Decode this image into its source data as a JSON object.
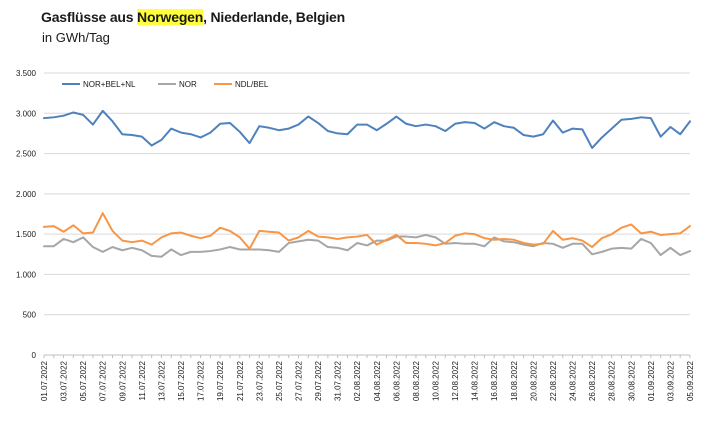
{
  "header": {
    "title_prefix": "Gasflüsse aus ",
    "title_highlight": "Norwegen",
    "title_suffix": ", Niederlande, Belgien",
    "subtitle": "in GWh/Tag"
  },
  "colors": {
    "highlight": "#ffff3c",
    "gridline": "#d9d9d9",
    "axis": "#bfbfbf",
    "text": "#1a1a1a"
  },
  "chart_data": {
    "type": "line",
    "title": "",
    "xlabel": "",
    "ylabel": "",
    "ylim": [
      0,
      3500
    ],
    "yticks": [
      0,
      500,
      1000,
      1500,
      2000,
      2500,
      3000,
      3500
    ],
    "ytick_labels": [
      "0",
      "500",
      "1.000",
      "1.500",
      "2.000",
      "2.500",
      "3.000",
      "3.500"
    ],
    "grid": true,
    "legend_position": "top-left",
    "x": [
      "01.07.2022",
      "02.07.2022",
      "03.07.2022",
      "04.07.2022",
      "05.07.2022",
      "06.07.2022",
      "07.07.2022",
      "08.07.2022",
      "09.07.2022",
      "10.07.2022",
      "11.07.2022",
      "12.07.2022",
      "13.07.2022",
      "14.07.2022",
      "15.07.2022",
      "16.07.2022",
      "17.07.2022",
      "18.07.2022",
      "19.07.2022",
      "20.07.2022",
      "21.07.2022",
      "22.07.2022",
      "23.07.2022",
      "24.07.2022",
      "25.07.2022",
      "26.07.2022",
      "27.07.2022",
      "28.07.2022",
      "29.07.2022",
      "30.07.2022",
      "31.07.2022",
      "01.08.2022",
      "02.08.2022",
      "03.08.2022",
      "04.08.2022",
      "05.08.2022",
      "06.08.2022",
      "07.08.2022",
      "08.08.2022",
      "09.08.2022",
      "10.08.2022",
      "11.08.2022",
      "12.08.2022",
      "13.08.2022",
      "14.08.2022",
      "15.08.2022",
      "16.08.2022",
      "17.08.2022",
      "18.08.2022",
      "19.08.2022",
      "20.08.2022",
      "21.08.2022",
      "22.08.2022",
      "23.08.2022",
      "24.08.2022",
      "25.08.2022",
      "26.08.2022",
      "27.08.2022",
      "28.08.2022",
      "29.08.2022",
      "30.08.2022",
      "31.08.2022",
      "01.09.2022",
      "02.09.2022",
      "03.09.2022",
      "04.09.2022",
      "05.09.2022"
    ],
    "xtick_labels": [
      "01.07.2022",
      "03.07.2022",
      "05.07.2022",
      "07.07.2022",
      "09.07.2022",
      "11.07.2022",
      "13.07.2022",
      "15.07.2022",
      "17.07.2022",
      "19.07.2022",
      "21.07.2022",
      "23.07.2022",
      "25.07.2022",
      "27.07.2022",
      "29.07.2022",
      "31.07.2022",
      "02.08.2022",
      "04.08.2022",
      "06.08.2022",
      "08.08.2022",
      "10.08.2022",
      "12.08.2022",
      "14.08.2022",
      "16.08.2022",
      "18.08.2022",
      "20.08.2022",
      "22.08.2022",
      "24.08.2022",
      "26.08.2022",
      "28.08.2022",
      "30.08.2022",
      "01.09.2022",
      "03.09.2022",
      "05.09.2022"
    ],
    "series": [
      {
        "name": "NOR+BEL+NL",
        "color": "#4f81bd",
        "values": [
          2940,
          2950,
          2970,
          3010,
          2980,
          2860,
          3030,
          2900,
          2740,
          2730,
          2710,
          2600,
          2670,
          2810,
          2760,
          2740,
          2700,
          2760,
          2870,
          2880,
          2770,
          2630,
          2840,
          2820,
          2790,
          2810,
          2860,
          2960,
          2880,
          2780,
          2750,
          2740,
          2860,
          2860,
          2790,
          2870,
          2960,
          2870,
          2840,
          2860,
          2840,
          2780,
          2870,
          2890,
          2880,
          2810,
          2890,
          2840,
          2820,
          2730,
          2710,
          2740,
          2910,
          2760,
          2810,
          2800,
          2570,
          2700,
          2810,
          2920,
          2930,
          2950,
          2940,
          2710,
          2830,
          2740,
          2900
        ]
      },
      {
        "name": "NOR",
        "color": "#a6a6a6",
        "values": [
          1350,
          1350,
          1440,
          1400,
          1460,
          1340,
          1280,
          1340,
          1300,
          1330,
          1300,
          1230,
          1220,
          1310,
          1240,
          1280,
          1280,
          1290,
          1310,
          1340,
          1310,
          1310,
          1310,
          1300,
          1280,
          1390,
          1410,
          1430,
          1420,
          1340,
          1330,
          1300,
          1390,
          1360,
          1420,
          1420,
          1470,
          1470,
          1460,
          1490,
          1460,
          1380,
          1390,
          1380,
          1380,
          1350,
          1460,
          1410,
          1400,
          1370,
          1350,
          1390,
          1380,
          1330,
          1380,
          1380,
          1250,
          1280,
          1320,
          1330,
          1320,
          1440,
          1390,
          1240,
          1330,
          1240,
          1290
        ]
      },
      {
        "name": "NDL/BEL",
        "color": "#f79646",
        "values": [
          1590,
          1600,
          1530,
          1610,
          1510,
          1520,
          1760,
          1540,
          1420,
          1400,
          1420,
          1370,
          1460,
          1510,
          1520,
          1480,
          1450,
          1480,
          1580,
          1540,
          1460,
          1320,
          1540,
          1530,
          1520,
          1420,
          1460,
          1540,
          1470,
          1460,
          1440,
          1460,
          1470,
          1490,
          1370,
          1430,
          1490,
          1390,
          1390,
          1380,
          1360,
          1390,
          1480,
          1510,
          1500,
          1450,
          1430,
          1440,
          1430,
          1390,
          1370,
          1380,
          1540,
          1430,
          1450,
          1420,
          1340,
          1450,
          1500,
          1580,
          1620,
          1510,
          1530,
          1490,
          1500,
          1510,
          1600
        ]
      }
    ]
  }
}
